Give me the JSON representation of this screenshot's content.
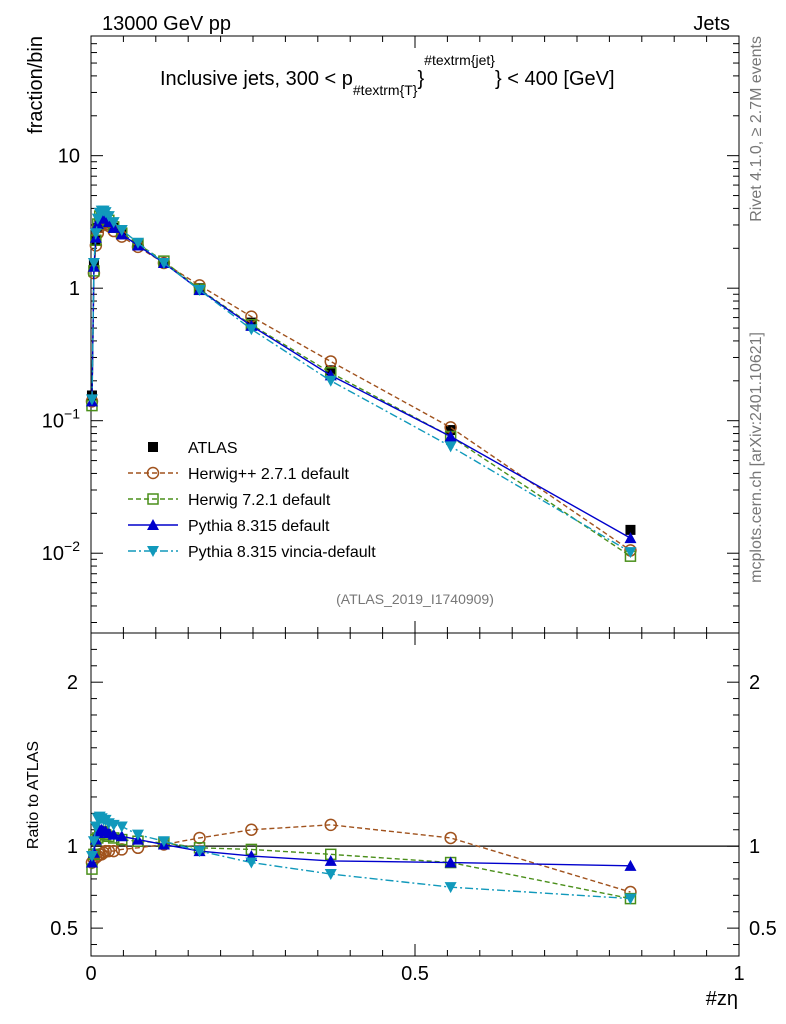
{
  "header": {
    "left": "13000 GeV pp",
    "right": "Jets",
    "side_info": "Rivet 4.1.0, ≥ 2.7M events",
    "side_ref": "mcplots.cern.ch [arXiv:2401.10621]",
    "watermark": "(ATLAS_2019_I1740909)"
  },
  "chart_data": [
    {
      "type": "line",
      "title": "Inclusive jets, 300 < p",
      "title_sub": "#textrm{T}",
      "title_sup": "#textrm{jet}",
      "title_tail": "} < 400 [GeV]",
      "title_mid": "}",
      "ylabel": "fraction/bin",
      "xlabel": "",
      "yscale": "log",
      "xlim": [
        0,
        1
      ],
      "ylim": [
        0.0025,
        80
      ],
      "ytick_values": [
        0.01,
        0.1,
        1,
        10
      ],
      "ytick_labels": [
        {
          "base": "10",
          "exp": "−2"
        },
        {
          "base": "10",
          "exp": "−1"
        },
        {
          "base": "1",
          "exp": ""
        },
        {
          "base": "10",
          "exp": ""
        }
      ],
      "x": [
        0.0015,
        0.0045,
        0.0075,
        0.0105,
        0.0135,
        0.0165,
        0.0195,
        0.0225,
        0.0275,
        0.035,
        0.0475,
        0.0725,
        0.1125,
        0.1675,
        0.2475,
        0.37,
        0.555,
        0.8325
      ],
      "legend": [
        {
          "name": "ATLAS",
          "style": "data"
        },
        {
          "name": "Herwig++ 2.7.1 default",
          "style": "open-circle-dashed"
        },
        {
          "name": "Herwig 7.2.1 default",
          "style": "open-square-dashed"
        },
        {
          "name": "Pythia 8.315 default",
          "style": "triangle-up-solid"
        },
        {
          "name": "Pythia 8.315 vincia-default",
          "style": "triangle-down-dashdot"
        }
      ],
      "series": [
        {
          "name": "ATLAS",
          "color": "#000000",
          "values": [
            0.155,
            1.5,
            2.3,
            2.85,
            3.15,
            3.3,
            3.3,
            3.25,
            3.1,
            2.85,
            2.55,
            2.1,
            1.55,
            1.0,
            0.55,
            0.24,
            0.085,
            0.015
          ]
        },
        {
          "name": "Herwig++ 2.7.1 default",
          "color": "#a0521d",
          "values": [
            0.14,
            1.3,
            2.1,
            2.6,
            2.9,
            3.05,
            3.1,
            3.05,
            2.95,
            2.7,
            2.45,
            2.05,
            1.55,
            1.05,
            0.61,
            0.28,
            0.089,
            0.0105
          ]
        },
        {
          "name": "Herwig 7.2.1 default",
          "color": "#4a8f1a",
          "values": [
            0.13,
            1.35,
            2.3,
            3.05,
            3.5,
            3.6,
            3.55,
            3.45,
            3.25,
            2.9,
            2.6,
            2.15,
            1.6,
            0.98,
            0.53,
            0.23,
            0.076,
            0.0095
          ]
        },
        {
          "name": "Pythia 8.315 default",
          "color": "#0000cc",
          "values": [
            0.14,
            1.45,
            2.4,
            3.05,
            3.35,
            3.45,
            3.45,
            3.35,
            3.15,
            2.85,
            2.55,
            2.1,
            1.55,
            0.97,
            0.52,
            0.22,
            0.076,
            0.013
          ]
        },
        {
          "name": "Pythia 8.315 vincia-default",
          "color": "#1199bb",
          "values": [
            0.145,
            1.55,
            2.6,
            3.35,
            3.7,
            3.85,
            3.85,
            3.75,
            3.5,
            3.15,
            2.75,
            2.2,
            1.55,
            0.97,
            0.49,
            0.2,
            0.064,
            0.0102
          ]
        }
      ]
    },
    {
      "type": "line",
      "title": "",
      "ylabel": "Ratio to ATLAS",
      "xlabel": "#zη",
      "yscale": "linear",
      "xlim": [
        0,
        1
      ],
      "ylim": [
        0.33,
        2.3
      ],
      "ytick_labels": [
        "0.5",
        "1",
        "2"
      ],
      "ytick_values": [
        0.5,
        1,
        2
      ],
      "xtick_labels": [
        "0",
        "0.5",
        "1"
      ],
      "xtick_values": [
        0,
        0.5,
        1
      ],
      "reference_line": 1,
      "x": [
        0.0015,
        0.0045,
        0.0075,
        0.0105,
        0.0135,
        0.0165,
        0.0195,
        0.0225,
        0.0275,
        0.035,
        0.0475,
        0.0725,
        0.1125,
        0.1675,
        0.2475,
        0.37,
        0.555,
        0.8325
      ],
      "series": [
        {
          "name": "Herwig++ 2.7.1 default",
          "color": "#a0521d",
          "values": [
            0.9,
            0.92,
            0.93,
            0.94,
            0.95,
            0.95,
            0.96,
            0.97,
            0.97,
            0.97,
            0.98,
            0.99,
            1.01,
            1.05,
            1.1,
            1.13,
            1.05,
            0.72
          ]
        },
        {
          "name": "Herwig 7.2.1 default",
          "color": "#4a8f1a",
          "values": [
            0.86,
            0.95,
            1.04,
            1.05,
            1.08,
            1.09,
            1.08,
            1.07,
            1.06,
            1.05,
            1.04,
            1.03,
            1.02,
            0.99,
            0.98,
            0.95,
            0.9,
            0.68
          ]
        },
        {
          "name": "Pythia 8.315 default",
          "color": "#0000cc",
          "values": [
            0.9,
            0.96,
            1.04,
            1.08,
            1.1,
            1.1,
            1.09,
            1.09,
            1.08,
            1.07,
            1.06,
            1.04,
            1.01,
            0.97,
            0.94,
            0.91,
            0.9,
            0.88
          ]
        },
        {
          "name": "Pythia 8.315 vincia-default",
          "color": "#1199bb",
          "values": [
            0.94,
            1.03,
            1.12,
            1.17,
            1.18,
            1.17,
            1.16,
            1.16,
            1.14,
            1.13,
            1.12,
            1.07,
            1.03,
            0.97,
            0.9,
            0.83,
            0.75,
            0.68
          ]
        }
      ]
    }
  ]
}
